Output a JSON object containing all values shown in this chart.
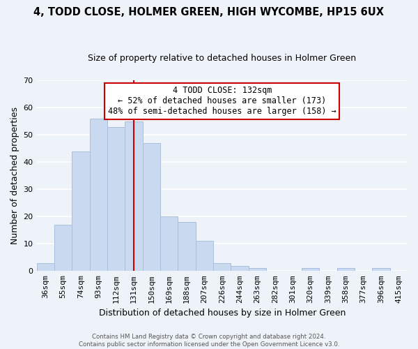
{
  "title": "4, TODD CLOSE, HOLMER GREEN, HIGH WYCOMBE, HP15 6UX",
  "subtitle": "Size of property relative to detached houses in Holmer Green",
  "xlabel": "Distribution of detached houses by size in Holmer Green",
  "ylabel": "Number of detached properties",
  "bar_labels": [
    "36sqm",
    "55sqm",
    "74sqm",
    "93sqm",
    "112sqm",
    "131sqm",
    "150sqm",
    "169sqm",
    "188sqm",
    "207sqm",
    "226sqm",
    "244sqm",
    "263sqm",
    "282sqm",
    "301sqm",
    "320sqm",
    "339sqm",
    "358sqm",
    "377sqm",
    "396sqm",
    "415sqm"
  ],
  "bar_values": [
    3,
    17,
    44,
    56,
    53,
    55,
    47,
    20,
    18,
    11,
    3,
    2,
    1,
    0,
    0,
    1,
    0,
    1,
    0,
    1,
    0
  ],
  "bar_color": "#c9d9ef",
  "bar_edge_color": "#a8bedd",
  "vline_x": 5,
  "vline_color": "#cc0000",
  "annotation_line1": "4 TODD CLOSE: 132sqm",
  "annotation_line2": "← 52% of detached houses are smaller (173)",
  "annotation_line3": "48% of semi-detached houses are larger (158) →",
  "annotation_box_color": "#ffffff",
  "annotation_box_edge_color": "#cc0000",
  "ylim": [
    0,
    70
  ],
  "yticks": [
    0,
    10,
    20,
    30,
    40,
    50,
    60,
    70
  ],
  "footer_line1": "Contains HM Land Registry data © Crown copyright and database right 2024.",
  "footer_line2": "Contains public sector information licensed under the Open Government Licence v3.0.",
  "bg_color": "#eef2f9",
  "plot_bg_color": "#eef2f9",
  "grid_color": "#ffffff",
  "title_fontsize": 10.5,
  "subtitle_fontsize": 9,
  "ylabel_fontsize": 9,
  "xlabel_fontsize": 9,
  "tick_fontsize": 8,
  "annotation_fontsize": 8.5
}
